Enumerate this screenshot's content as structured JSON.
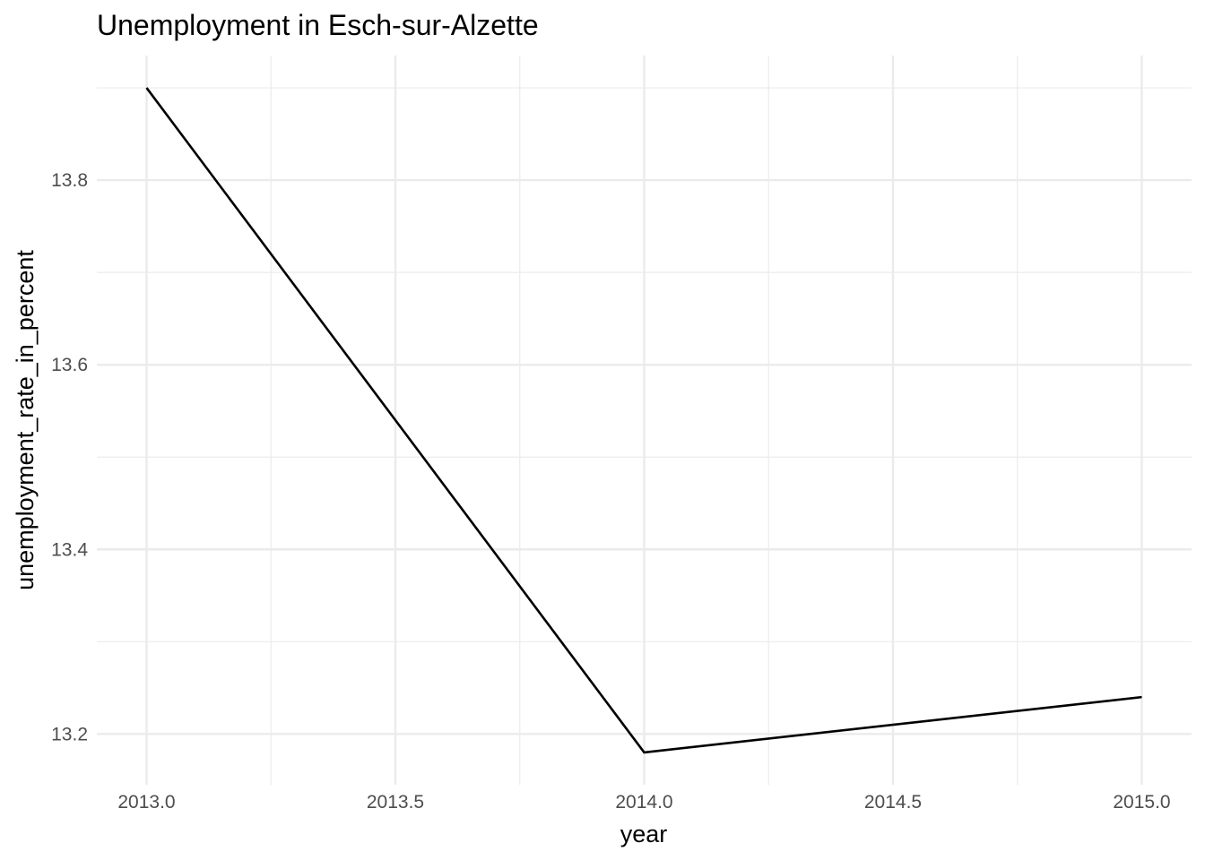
{
  "chart_data": {
    "type": "line",
    "title": "Unemployment in Esch-sur-Alzette",
    "xlabel": "year",
    "ylabel": "unemployment_rate_in_percent",
    "x": [
      2013,
      2014,
      2015
    ],
    "series": [
      {
        "values": [
          13.9,
          13.18,
          13.24
        ]
      }
    ],
    "xlim": [
      2012.9,
      2015.1
    ],
    "ylim": [
      13.145,
      13.935
    ],
    "x_ticks": [
      2013.0,
      2013.5,
      2014.0,
      2014.5,
      2015.0
    ],
    "x_tick_labels": [
      "2013.0",
      "2013.5",
      "2014.0",
      "2014.5",
      "2015.0"
    ],
    "x_minor_ticks": [
      2013.25,
      2013.75,
      2014.25,
      2014.75
    ],
    "y_ticks": [
      13.2,
      13.4,
      13.6,
      13.8
    ],
    "y_tick_labels": [
      "13.2",
      "13.4",
      "13.6",
      "13.8"
    ],
    "y_minor_ticks": [
      13.3,
      13.5,
      13.7,
      13.9
    ],
    "grid": true,
    "legend": "none",
    "colors": {
      "line": "#000000",
      "grid": "#ebebeb",
      "tick_text": "#4d4d4d"
    }
  }
}
